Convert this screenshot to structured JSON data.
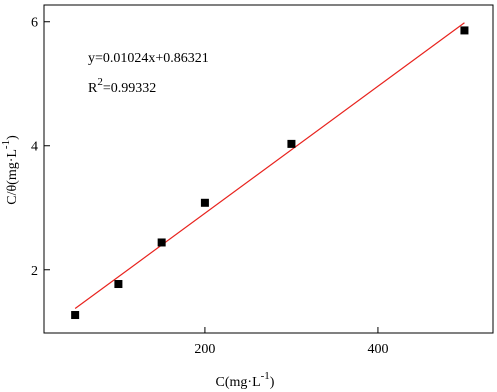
{
  "chart_data": {
    "type": "scatter",
    "x": [
      50,
      100,
      150,
      200,
      300,
      500
    ],
    "values": [
      1.27,
      1.77,
      2.44,
      3.08,
      4.03,
      5.86
    ],
    "color": "#000000",
    "fit": {
      "x": [
        50,
        500
      ],
      "values": [
        1.375,
        5.983
      ],
      "color": "#e8231e"
    },
    "xlim": [
      14,
      533
    ],
    "ylim": [
      0.98,
      6.27
    ],
    "xticks": [
      200,
      400
    ],
    "yticks": [
      2,
      4,
      6
    ],
    "xlabel": {
      "text": "C(mg·L",
      "power": "-1",
      "close": ")"
    },
    "ylabel": {
      "text": "C/θ(mg·L",
      "power": "-1",
      "close": ")"
    },
    "equation": "y=0.01024x+0.86321",
    "r_squared": {
      "symbol": "R",
      "power": "2",
      "value": "=0.99332"
    }
  }
}
